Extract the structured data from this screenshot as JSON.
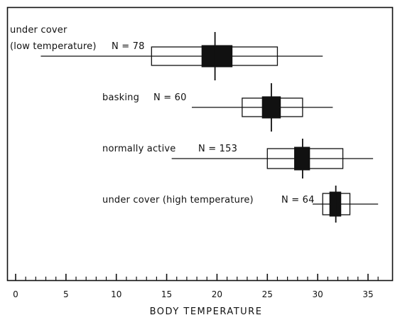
{
  "chart_data": {
    "type": "boxplot",
    "xlabel": "BODY TEMPERATURE",
    "xlim": [
      0,
      37
    ],
    "xticks": [
      0,
      5,
      10,
      15,
      20,
      25,
      30,
      35
    ],
    "minor_tick_step": 1,
    "series": [
      {
        "label_lines": [
          "under cover",
          "(low temperature)"
        ],
        "n_label": "N = 78",
        "range": [
          2.5,
          30.5
        ],
        "box": [
          13.5,
          26.0
        ],
        "sd_box": [
          18.5,
          21.5
        ],
        "mean": 19.8
      },
      {
        "label_lines": [
          "basking"
        ],
        "n_label": "N = 60",
        "range": [
          17.5,
          31.5
        ],
        "box": [
          22.5,
          28.5
        ],
        "sd_box": [
          24.5,
          26.3
        ],
        "mean": 25.4
      },
      {
        "label_lines": [
          "normally active"
        ],
        "n_label": "N = 153",
        "range": [
          15.5,
          35.5
        ],
        "box": [
          25.0,
          32.5
        ],
        "sd_box": [
          27.7,
          29.2
        ],
        "mean": 28.5
      },
      {
        "label_lines": [
          "under cover (high temperature)"
        ],
        "n_label": "N = 64",
        "range": [
          29.5,
          36.0
        ],
        "box": [
          30.5,
          33.2
        ],
        "sd_box": [
          31.2,
          32.3
        ],
        "mean": 31.8
      }
    ]
  }
}
